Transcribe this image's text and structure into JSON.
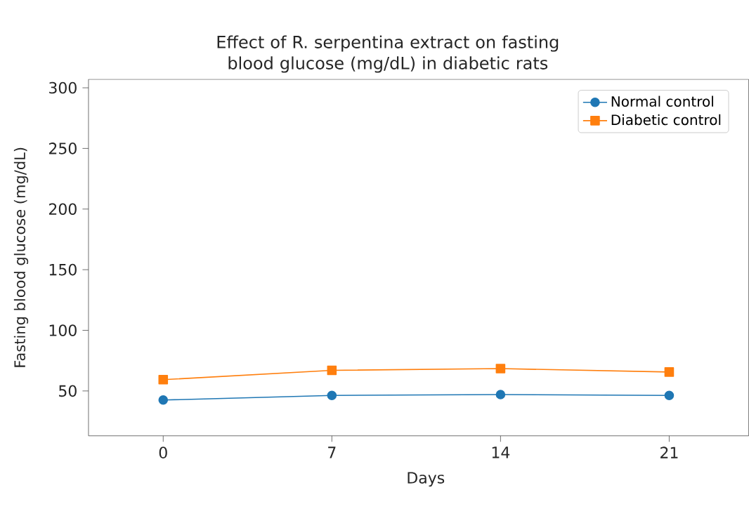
{
  "chart_data": {
    "type": "line",
    "title": "Effect of R. serpentina extract on fasting blood glucose (mg/dL) in diabetic rats",
    "xlabel": "Days",
    "ylabel": "Fasting blood glucose (mg/dL)",
    "x": [
      0,
      7,
      14,
      21
    ],
    "series": [
      {
        "name": "Normal control",
        "color": "#1f77b4",
        "marker": "circle",
        "values": [
          42.5,
          46.3,
          47.0,
          46.3
        ]
      },
      {
        "name": "Diabetic control",
        "color": "#ff7f0e",
        "marker": "square",
        "values": [
          59.3,
          67.0,
          68.4,
          65.6
        ]
      }
    ],
    "xlim": [
      -3.1,
      24.3
    ],
    "ylim": [
      13,
      307
    ],
    "xticks": [
      0,
      7,
      14,
      21
    ],
    "yticks": [
      50,
      100,
      150,
      200,
      250,
      300
    ],
    "legend": "top right",
    "grid": false,
    "line_style": "solid"
  }
}
